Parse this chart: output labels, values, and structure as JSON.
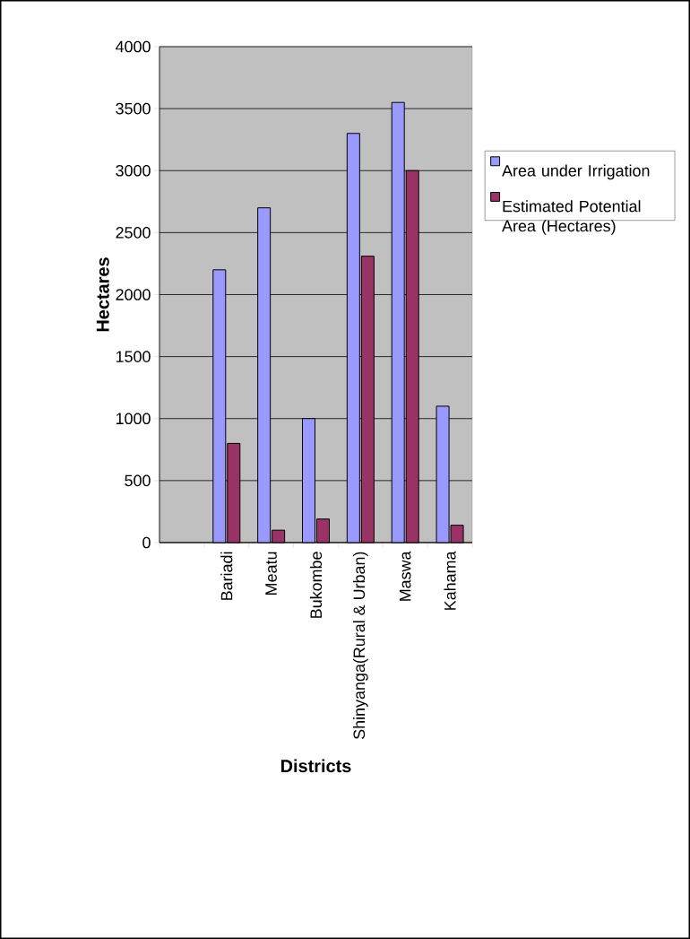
{
  "chart_data": {
    "type": "bar",
    "xlabel": "Districts",
    "ylabel": "Hectares",
    "categories": [
      null,
      "Bariadi",
      "Meatu",
      "Bukombe",
      "Shinyanga(Rural & Urban)",
      "Maswa",
      "Kahama"
    ],
    "series": [
      {
        "name": "Area under Irrigation",
        "color": "#9999ff",
        "values": [
          null,
          2200,
          2700,
          1000,
          3300,
          3550,
          1100
        ]
      },
      {
        "name": "Estimated Potential Area (Hectares)",
        "color": "#993366",
        "values": [
          null,
          800,
          100,
          190,
          2310,
          3000,
          140
        ]
      }
    ],
    "ylim": [
      0,
      4000
    ],
    "yticks": [
      0,
      500,
      1000,
      1500,
      2000,
      2500,
      3000,
      3500,
      4000
    ],
    "grid": "y",
    "legend": "right"
  }
}
